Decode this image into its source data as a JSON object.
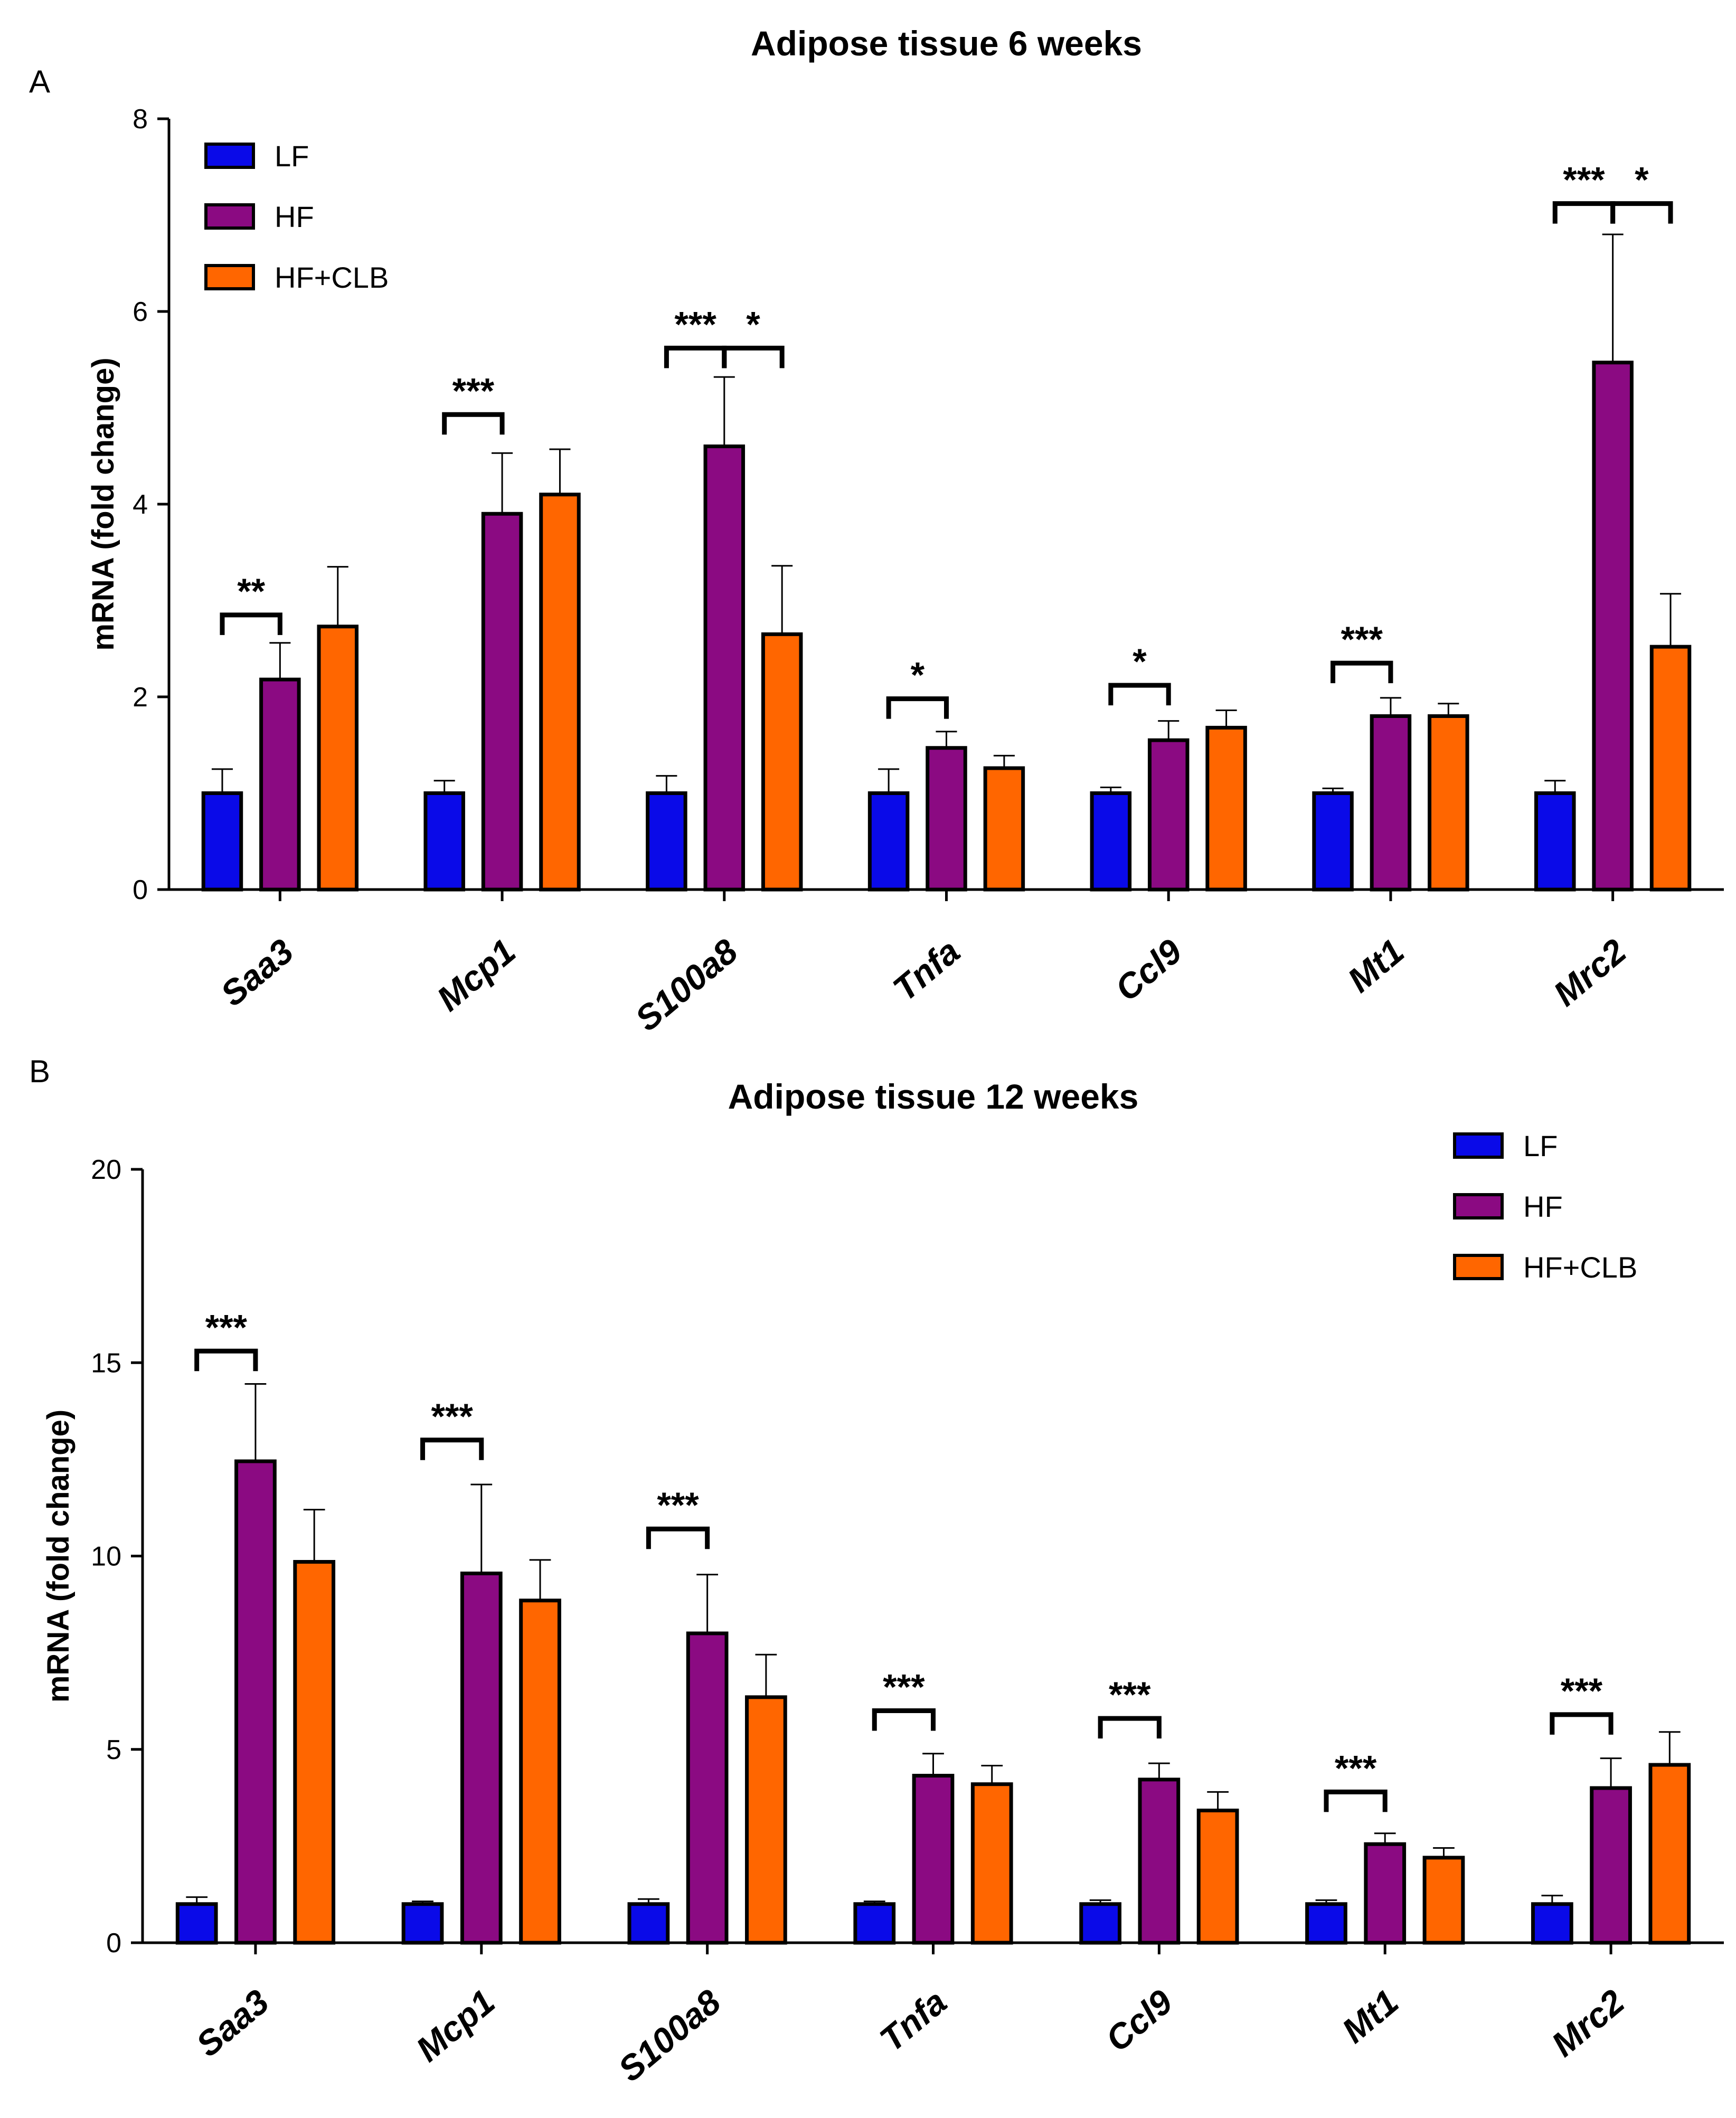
{
  "figure": {
    "panel_a_label": "A",
    "panel_b_label": "B"
  },
  "colors": {
    "LF": "#0a0ae8",
    "HF": "#8b0a82",
    "HF+CLB": "#ff6600"
  },
  "chart_data": [
    {
      "type": "bar",
      "panel": "A",
      "title": "Adipose tissue 6 weeks",
      "xlabel": "",
      "ylabel": "mRNA (fold change)",
      "ylim": [
        0,
        8
      ],
      "yticks": [
        "0",
        "2",
        "4",
        "6",
        "8"
      ],
      "legend_position": "top-left",
      "categories": [
        "Saa3",
        "Mcp1",
        "S100a8",
        "Tnfa",
        "Ccl9",
        "Mt1",
        "Mrc2"
      ],
      "series": [
        {
          "name": "LF",
          "values": [
            1.0,
            1.0,
            1.0,
            1.0,
            1.0,
            1.0,
            1.0
          ],
          "errors": [
            0.25,
            0.13,
            0.18,
            0.25,
            0.06,
            0.05,
            0.13
          ]
        },
        {
          "name": "HF",
          "values": [
            2.18,
            3.9,
            4.6,
            1.47,
            1.55,
            1.8,
            5.47
          ],
          "errors": [
            0.38,
            0.63,
            0.72,
            0.17,
            0.2,
            0.19,
            1.33
          ]
        },
        {
          "name": "HF+CLB",
          "values": [
            2.73,
            4.1,
            2.65,
            1.26,
            1.68,
            1.8,
            2.52
          ],
          "errors": [
            0.62,
            0.47,
            0.71,
            0.13,
            0.18,
            0.13,
            0.55
          ]
        }
      ],
      "significance": [
        {
          "category": "Saa3",
          "from": "LF",
          "to": "HF",
          "label": "**",
          "level": 2.85
        },
        {
          "category": "Mcp1",
          "from": "LF",
          "to": "HF",
          "label": "***",
          "level": 4.93
        },
        {
          "category": "S100a8",
          "from": "LF",
          "to": "HF",
          "label": "***",
          "level": 5.62
        },
        {
          "category": "S100a8",
          "from": "HF",
          "to": "HF+CLB",
          "label": "*",
          "level": 5.62
        },
        {
          "category": "Tnfa",
          "from": "LF",
          "to": "HF",
          "label": "*",
          "level": 1.98
        },
        {
          "category": "Ccl9",
          "from": "LF",
          "to": "HF",
          "label": "*",
          "level": 2.12
        },
        {
          "category": "Mt1",
          "from": "LF",
          "to": "HF",
          "label": "***",
          "level": 2.35
        },
        {
          "category": "Mrc2",
          "from": "LF",
          "to": "HF",
          "label": "***",
          "level": 7.12
        },
        {
          "category": "Mrc2",
          "from": "HF",
          "to": "HF+CLB",
          "label": "*",
          "level": 7.12
        }
      ]
    },
    {
      "type": "bar",
      "panel": "B",
      "title": "Adipose tissue 12 weeks",
      "xlabel": "",
      "ylabel": "mRNA (fold change)",
      "ylim": [
        0,
        20
      ],
      "yticks": [
        "0",
        "5",
        "10",
        "15",
        "20"
      ],
      "legend_position": "top-right",
      "categories": [
        "Saa3",
        "Mcp1",
        "S100a8",
        "Tnfa",
        "Ccl9",
        "Mt1",
        "Mrc2"
      ],
      "series": [
        {
          "name": "LF",
          "values": [
            1.0,
            1.0,
            1.0,
            1.0,
            1.0,
            1.0,
            1.0
          ],
          "errors": [
            0.18,
            0.07,
            0.13,
            0.07,
            0.1,
            0.1,
            0.22
          ]
        },
        {
          "name": "HF",
          "values": [
            12.45,
            9.55,
            8.0,
            4.32,
            4.22,
            2.55,
            4.0
          ],
          "errors": [
            2.0,
            2.3,
            1.52,
            0.57,
            0.42,
            0.28,
            0.77
          ]
        },
        {
          "name": "HF+CLB",
          "values": [
            9.85,
            8.85,
            6.35,
            4.1,
            3.42,
            2.2,
            4.6
          ],
          "errors": [
            1.35,
            1.05,
            1.1,
            0.48,
            0.48,
            0.25,
            0.85
          ]
        }
      ],
      "significance": [
        {
          "category": "Saa3",
          "from": "LF",
          "to": "HF",
          "label": "***",
          "level": 15.3
        },
        {
          "category": "Mcp1",
          "from": "LF",
          "to": "HF",
          "label": "***",
          "level": 13.0
        },
        {
          "category": "S100a8",
          "from": "LF",
          "to": "HF",
          "label": "***",
          "level": 10.7
        },
        {
          "category": "Tnfa",
          "from": "LF",
          "to": "HF",
          "label": "***",
          "level": 6.0
        },
        {
          "category": "Ccl9",
          "from": "LF",
          "to": "HF",
          "label": "***",
          "level": 5.8
        },
        {
          "category": "Mt1",
          "from": "LF",
          "to": "HF",
          "label": "***",
          "level": 3.9
        },
        {
          "category": "Mrc2",
          "from": "LF",
          "to": "HF",
          "label": "***",
          "level": 5.9
        }
      ]
    }
  ]
}
